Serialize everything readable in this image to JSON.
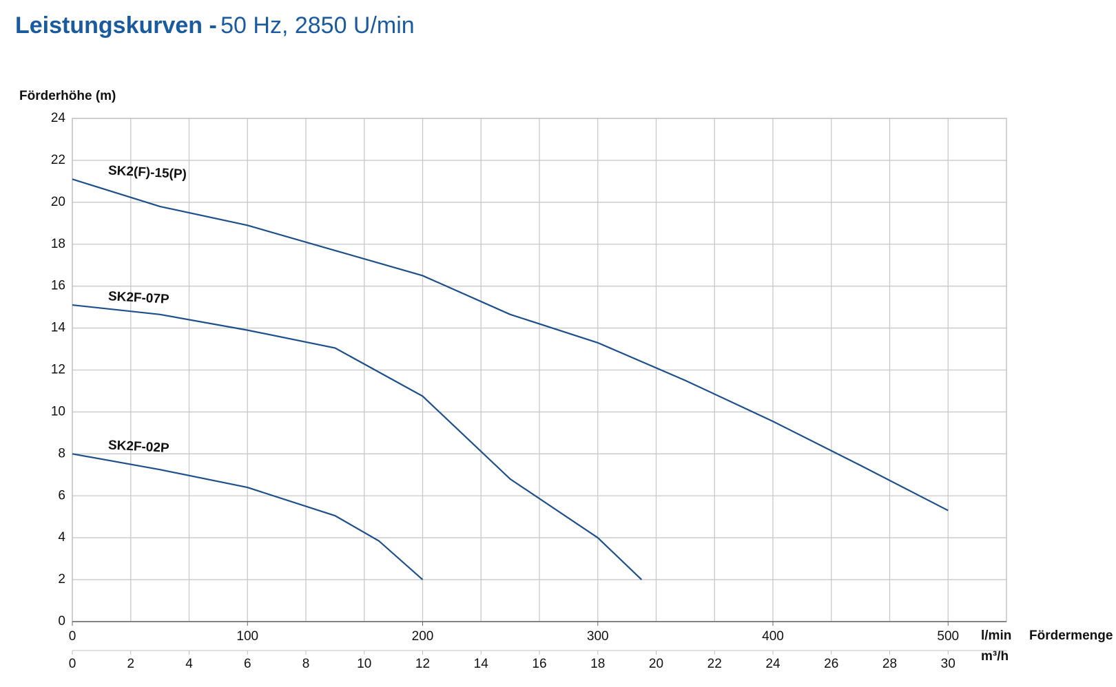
{
  "chart_data": {
    "type": "line",
    "title": "Leistungskurven -",
    "subtitle": "50 Hz, 2850 U/min",
    "y_label": "Förderhöhe (m)",
    "x_label": "Fördermenge",
    "x_unit": "l/min",
    "x2_unit": "m³/h",
    "xlim": [
      0,
      533.33
    ],
    "xticks": [
      0,
      100,
      200,
      300,
      400,
      500
    ],
    "x2lim": [
      0,
      32
    ],
    "x2ticks": [
      0,
      2,
      4,
      6,
      8,
      10,
      12,
      14,
      16,
      18,
      20,
      22,
      24,
      26,
      28,
      30
    ],
    "ylim": [
      0,
      24
    ],
    "yticks": [
      0,
      2,
      4,
      6,
      8,
      10,
      12,
      14,
      16,
      18,
      20,
      22,
      24
    ],
    "grid": true,
    "series": [
      {
        "name": "SK2(F)-15(P)",
        "color": "#1d4f8a",
        "x": [
          0,
          50,
          100,
          150,
          200,
          250,
          300,
          350,
          400,
          450,
          500
        ],
        "values": [
          21.1,
          19.8,
          18.9,
          17.7,
          16.5,
          14.65,
          13.3,
          11.5,
          9.55,
          7.45,
          5.3
        ]
      },
      {
        "name": "SK2F-07P",
        "color": "#1d4f8a",
        "x": [
          0,
          50,
          100,
          150,
          200,
          250,
          300,
          325
        ],
        "values": [
          15.1,
          14.65,
          13.9,
          13.05,
          10.75,
          6.8,
          4.0,
          2.0
        ]
      },
      {
        "name": "SK2F-02P",
        "color": "#1d4f8a",
        "x": [
          0,
          50,
          100,
          150,
          175,
          200
        ],
        "values": [
          8.0,
          7.25,
          6.4,
          5.05,
          3.85,
          2.0
        ]
      }
    ]
  }
}
